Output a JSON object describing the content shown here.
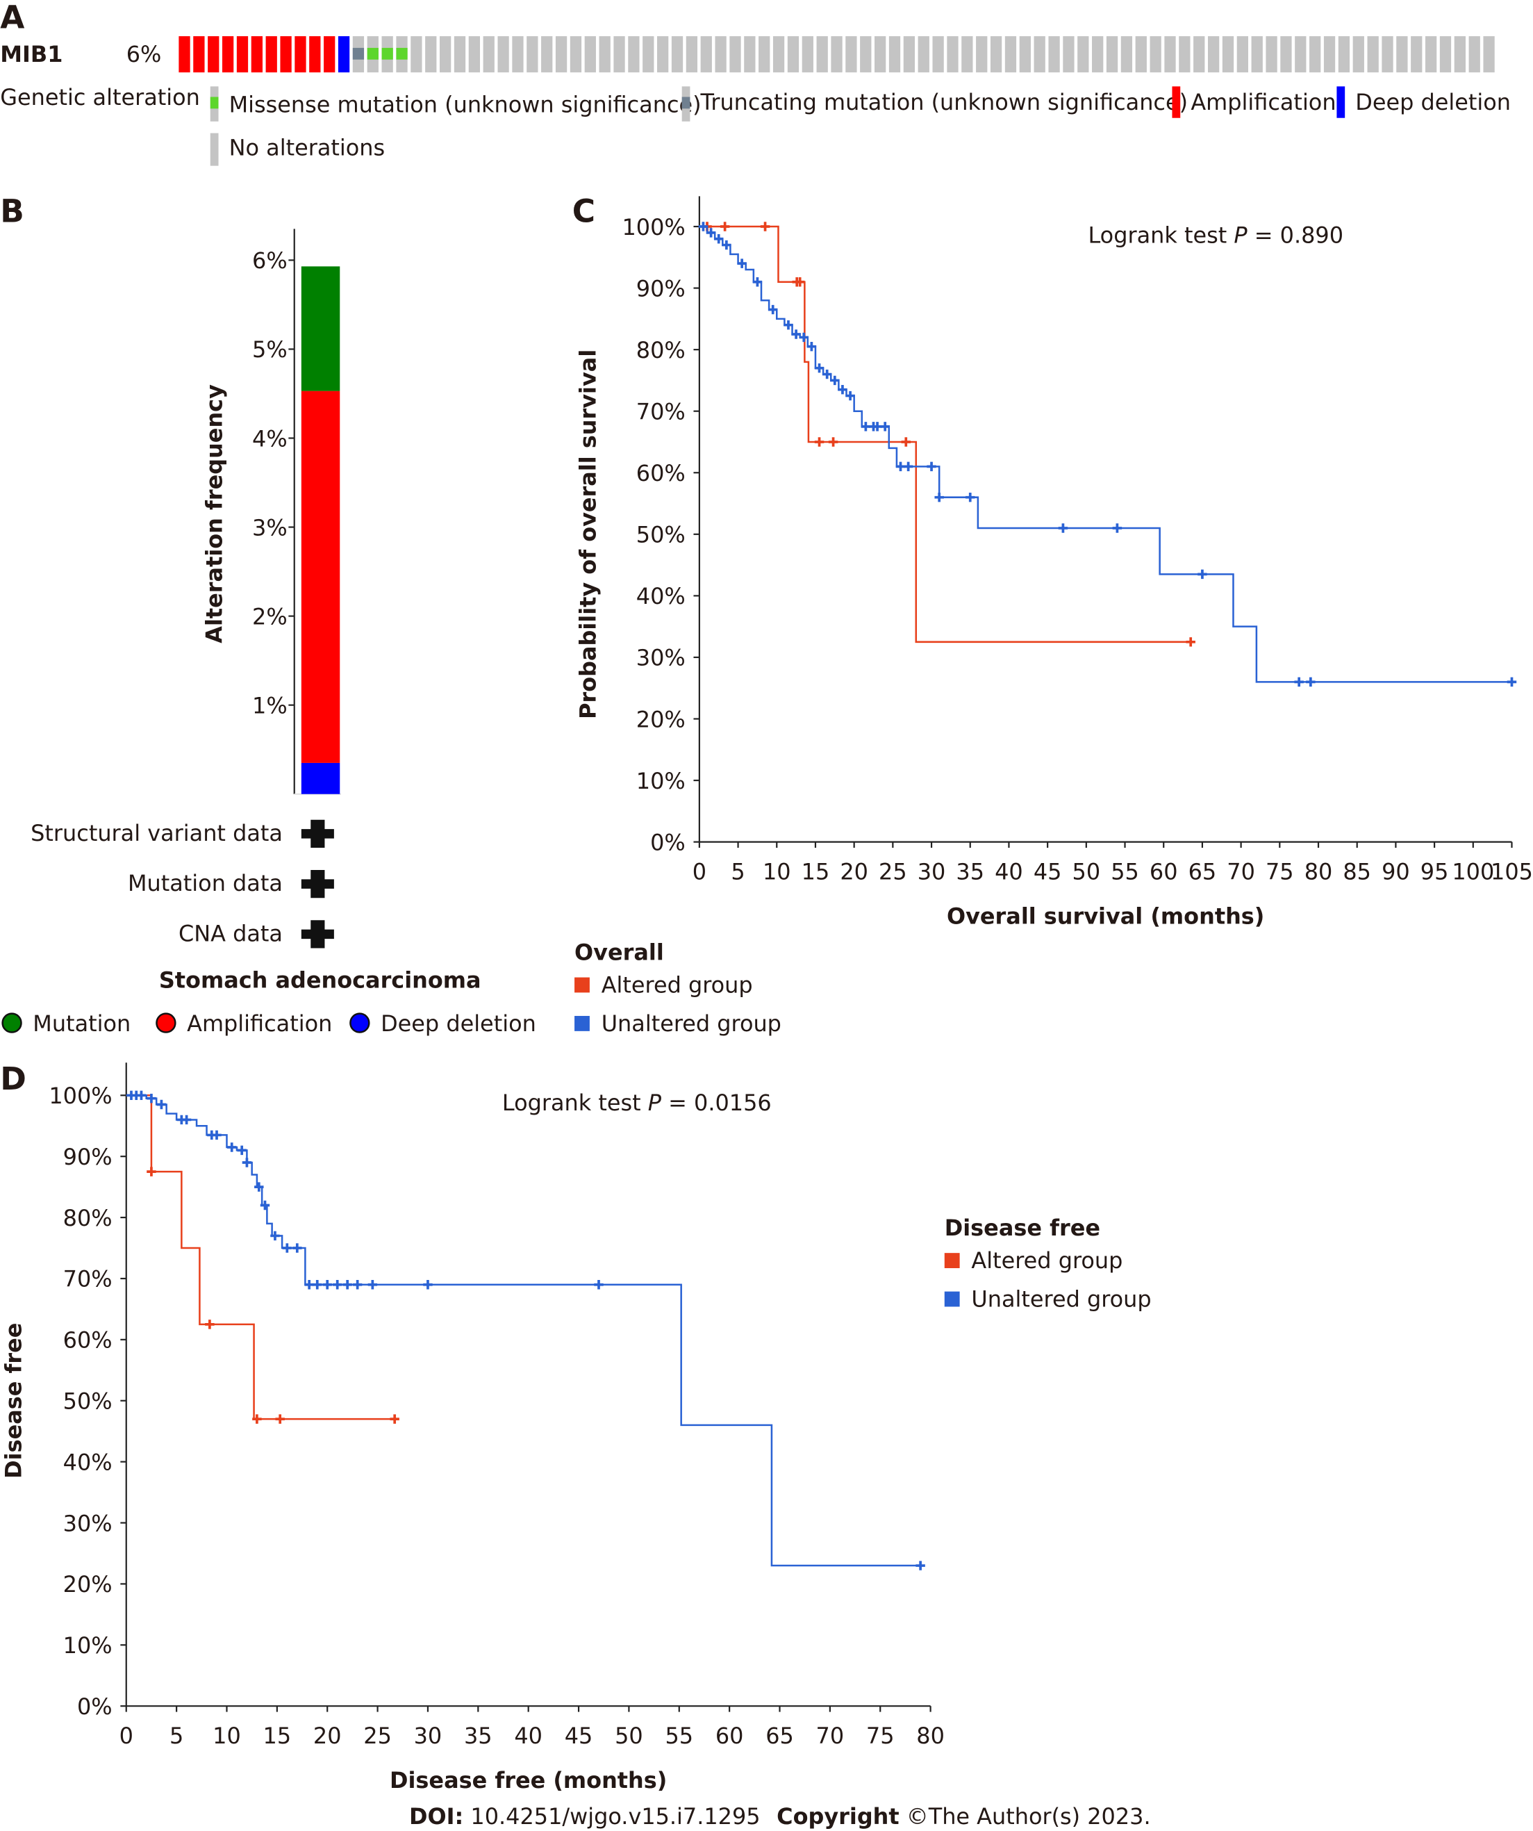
{
  "panel_labels": [
    "A",
    "B",
    "C",
    "D"
  ],
  "panel_a": {
    "gene": "MIB1",
    "frequency": "6%",
    "legend_title": "Genetic alteration",
    "legend": [
      {
        "label": "Missense mutation (unknown significance)",
        "color": "#5dd62c"
      },
      {
        "label": "Truncating mutation (unknown significance)",
        "color": "#708090"
      },
      {
        "label": "Amplification",
        "color": "#ff0000"
      },
      {
        "label": "Deep deletion",
        "color": "#0000ff"
      },
      {
        "label": "No alterations",
        "color": "#c4c4c4"
      }
    ],
    "samples": {
      "amplification": 11,
      "deep_deletion": 1,
      "truncating": 1,
      "missense": 3,
      "total_columns": 91
    }
  },
  "chart_data": [
    {
      "type": "bar",
      "panel": "B",
      "ylabel": "Alteration frequency",
      "yticks": [
        "1%",
        "2%",
        "3%",
        "4%",
        "5%",
        "6%"
      ],
      "ylim": [
        0,
        6.3
      ],
      "category": "Stomach adenocarcinoma",
      "stack": [
        {
          "name": "Deep deletion",
          "value": 0.35,
          "color": "#0000ff"
        },
        {
          "name": "Amplification",
          "value": 4.18,
          "color": "#ff0000"
        },
        {
          "name": "Mutation",
          "value": 1.4,
          "color": "#008000"
        }
      ],
      "data_rows": [
        "Structural variant data",
        "Mutation data",
        "CNA data"
      ],
      "legend": [
        "Mutation",
        "Amplification",
        "Deep deletion"
      ]
    },
    {
      "type": "line",
      "panel": "C",
      "xlabel": "Overall survival (months)",
      "ylabel": "Probability of overall survival",
      "xlim": [
        0,
        105
      ],
      "ylim": [
        0,
        100
      ],
      "xticks": [
        0,
        5,
        10,
        15,
        20,
        25,
        30,
        35,
        40,
        45,
        50,
        55,
        60,
        65,
        70,
        75,
        80,
        85,
        90,
        95,
        100,
        105
      ],
      "yticks": [
        "0%",
        "10%",
        "20%",
        "30%",
        "40%",
        "50%",
        "60%",
        "70%",
        "80%",
        "90%",
        "100%"
      ],
      "annotation": "Logrank test P = 0.890",
      "legend_title": "Overall",
      "series": [
        {
          "name": "Altered group",
          "color": "#e8401c",
          "steps": [
            [
              0,
              100
            ],
            [
              10.2,
              91
            ],
            [
              13.6,
              78
            ],
            [
              14.1,
              65
            ],
            [
              28,
              32.5
            ]
          ],
          "censored": [
            1,
            3.3,
            8.5,
            12.6,
            13,
            15.5,
            17.3,
            26.7,
            63.5
          ],
          "end": 63.5
        },
        {
          "name": "Unaltered group",
          "color": "#2a62d4",
          "steps": [
            [
              0,
              100
            ],
            [
              1,
              99
            ],
            [
              2,
              98
            ],
            [
              3,
              97
            ],
            [
              4,
              95.5
            ],
            [
              5,
              94
            ],
            [
              6,
              93
            ],
            [
              7,
              91
            ],
            [
              8,
              88
            ],
            [
              9,
              86.5
            ],
            [
              10,
              85
            ],
            [
              11,
              84
            ],
            [
              12,
              82.5
            ],
            [
              13,
              82
            ],
            [
              14,
              80.5
            ],
            [
              15,
              77
            ],
            [
              16,
              76
            ],
            [
              17,
              75
            ],
            [
              18,
              73.5
            ],
            [
              19,
              72.5
            ],
            [
              20,
              70
            ],
            [
              21,
              67.5
            ],
            [
              24.5,
              64
            ],
            [
              25.5,
              61
            ],
            [
              31,
              56
            ],
            [
              36,
              51
            ],
            [
              59.5,
              43.5
            ],
            [
              69,
              35
            ],
            [
              72,
              26
            ]
          ],
          "censored": [
            0.5,
            1.5,
            2.5,
            3.5,
            5.5,
            7.5,
            9.5,
            11.5,
            12.5,
            13.5,
            14.5,
            15.5,
            16.5,
            17.5,
            18.5,
            19.5,
            21.5,
            22.5,
            23,
            24,
            26,
            27,
            30,
            31,
            35,
            47,
            54,
            65,
            77.5,
            79,
            105
          ],
          "end": 105
        }
      ]
    },
    {
      "type": "line",
      "panel": "D",
      "xlabel": "Disease free (months)",
      "ylabel": "Disease free",
      "xlim": [
        0,
        80
      ],
      "ylim": [
        0,
        100
      ],
      "xticks": [
        0,
        5,
        10,
        15,
        20,
        25,
        30,
        35,
        40,
        45,
        50,
        55,
        60,
        65,
        70,
        75,
        80
      ],
      "yticks": [
        "0%",
        "10%",
        "20%",
        "30%",
        "40%",
        "50%",
        "60%",
        "70%",
        "80%",
        "90%",
        "100%"
      ],
      "annotation": "Logrank test P = 0.0156",
      "legend_title": "Disease free",
      "series": [
        {
          "name": "Altered group",
          "color": "#e8401c",
          "steps": [
            [
              0,
              100
            ],
            [
              2.5,
              87.5
            ],
            [
              5.5,
              75
            ],
            [
              7.3,
              62.5
            ],
            [
              12.7,
              47
            ]
          ],
          "censored": [
            2.5,
            8.3,
            13,
            15.3,
            26.7
          ],
          "end": 26.7
        },
        {
          "name": "Unaltered group",
          "color": "#2a62d4",
          "steps": [
            [
              0,
              100
            ],
            [
              2,
              99.5
            ],
            [
              3,
              98.5
            ],
            [
              4,
              97
            ],
            [
              5,
              96
            ],
            [
              7,
              95
            ],
            [
              8,
              93.5
            ],
            [
              10,
              91.5
            ],
            [
              11,
              91
            ],
            [
              12,
              89
            ],
            [
              12.5,
              87
            ],
            [
              13,
              85
            ],
            [
              13.5,
              82
            ],
            [
              14,
              79
            ],
            [
              14.5,
              77
            ],
            [
              15.5,
              75
            ],
            [
              17.8,
              69
            ],
            [
              55.2,
              46
            ],
            [
              64.2,
              23
            ]
          ],
          "censored": [
            0.5,
            1,
            1.5,
            2.5,
            3.5,
            5.5,
            6,
            8.5,
            9,
            10.5,
            11.5,
            12,
            13.2,
            13.8,
            14.8,
            16,
            17,
            18.2,
            19,
            20,
            21,
            22,
            23,
            24.5,
            30,
            47,
            79
          ],
          "end": 79
        }
      ]
    }
  ],
  "footer": {
    "doi_label": "DOI:",
    "doi": "10.4251/wjgo.v15.i7.1295",
    "copyright_label": "Copyright",
    "copyright": "©The Author(s) 2023."
  }
}
